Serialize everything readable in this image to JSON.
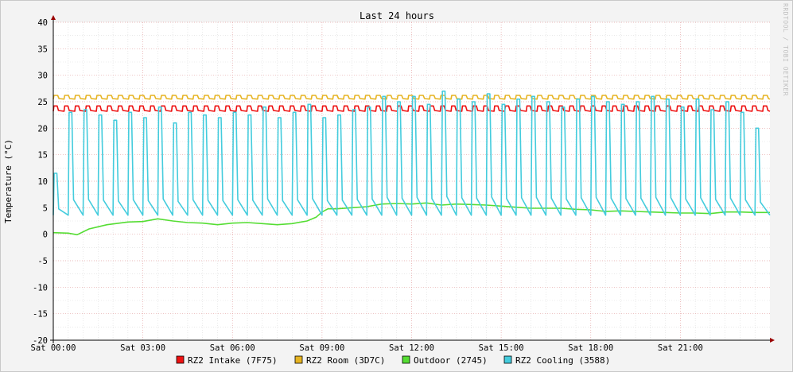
{
  "chart_data": {
    "type": "line",
    "title": "Last 24 hours",
    "ylabel": "Temperature (°C)",
    "watermark": "RRDTOOL / TOBI OETIKER",
    "ylim": [
      -20,
      40
    ],
    "yticks": [
      40,
      35,
      30,
      25,
      20,
      15,
      10,
      5,
      0,
      -5,
      -10,
      -15,
      -20
    ],
    "xlim": [
      0,
      24
    ],
    "xticks": [
      {
        "hour": 0,
        "label": "Sat 00:00"
      },
      {
        "hour": 3,
        "label": "Sat 03:00"
      },
      {
        "hour": 6,
        "label": "Sat 06:00"
      },
      {
        "hour": 9,
        "label": "Sat 09:00"
      },
      {
        "hour": 12,
        "label": "Sat 12:00"
      },
      {
        "hour": 15,
        "label": "Sat 15:00"
      },
      {
        "hour": 18,
        "label": "Sat 18:00"
      },
      {
        "hour": 21,
        "label": "Sat 21:00"
      }
    ],
    "legend_placement": "bottom",
    "series": [
      {
        "name": "RZ2 Intake (7F75)",
        "color": "#ee1111",
        "cycle": {
          "period_hours": 0.36,
          "low": 23.2,
          "high": 24.2,
          "high_fraction": 0.3
        }
      },
      {
        "name": "RZ2 Room (3D7C)",
        "color": "#e6b422",
        "cycle": {
          "period_hours": 0.36,
          "low": 25.5,
          "high": 26.2,
          "high_fraction": 0.35
        }
      },
      {
        "name": "Outdoor (2745)",
        "color": "#55dd33",
        "points": [
          [
            0,
            0.3
          ],
          [
            0.5,
            0.2
          ],
          [
            0.8,
            -0.1
          ],
          [
            1.2,
            1.0
          ],
          [
            1.8,
            1.8
          ],
          [
            2.5,
            2.3
          ],
          [
            3.0,
            2.4
          ],
          [
            3.5,
            2.9
          ],
          [
            4.0,
            2.5
          ],
          [
            4.5,
            2.2
          ],
          [
            5.0,
            2.1
          ],
          [
            5.5,
            1.8
          ],
          [
            6.0,
            2.1
          ],
          [
            6.5,
            2.2
          ],
          [
            7.0,
            2.0
          ],
          [
            7.5,
            1.8
          ],
          [
            8.0,
            2.0
          ],
          [
            8.5,
            2.5
          ],
          [
            8.8,
            3.2
          ],
          [
            9.0,
            4.2
          ],
          [
            9.2,
            4.8
          ],
          [
            9.5,
            4.8
          ],
          [
            10.0,
            5.0
          ],
          [
            10.5,
            5.2
          ],
          [
            11.0,
            5.7
          ],
          [
            11.5,
            5.8
          ],
          [
            12.0,
            5.7
          ],
          [
            12.5,
            5.9
          ],
          [
            13.0,
            5.5
          ],
          [
            13.5,
            5.7
          ],
          [
            14.0,
            5.6
          ],
          [
            14.5,
            5.5
          ],
          [
            15.0,
            5.3
          ],
          [
            15.5,
            5.1
          ],
          [
            16.0,
            4.9
          ],
          [
            16.5,
            4.9
          ],
          [
            17.0,
            4.9
          ],
          [
            17.5,
            4.7
          ],
          [
            18.0,
            4.6
          ],
          [
            18.5,
            4.3
          ],
          [
            19.0,
            4.4
          ],
          [
            19.5,
            4.3
          ],
          [
            20.0,
            4.2
          ],
          [
            20.5,
            4.1
          ],
          [
            21.0,
            4.0
          ],
          [
            21.5,
            4.0
          ],
          [
            22.0,
            3.9
          ],
          [
            22.5,
            4.2
          ],
          [
            23.0,
            4.2
          ],
          [
            23.5,
            4.1
          ],
          [
            24.0,
            4.1
          ]
        ]
      },
      {
        "name": "RZ2 Cooling (3588)",
        "color": "#44ccdd",
        "cycle": {
          "period_hours": 0.5,
          "low": 3.6,
          "high": 23.5,
          "high_fraction": 0.18
        },
        "peaks": [
          11.5,
          23.0,
          23.5,
          22.5,
          21.5,
          23.0,
          22.0,
          24.0,
          21.0,
          23.0,
          22.5,
          22.0,
          23.0,
          22.5,
          24.0,
          22.0,
          23.0,
          24.5,
          22.0,
          22.5,
          23.5,
          24.0,
          26.0,
          25.0,
          26.0,
          24.5,
          27.0,
          25.5,
          25.0,
          26.5,
          24.5,
          25.5,
          26.0,
          25.0,
          24.0,
          25.5,
          26.0,
          25.0,
          24.5,
          25.0,
          26.0,
          25.5,
          24.0,
          25.5,
          23.5,
          25.0,
          23.0,
          20.0
        ]
      }
    ]
  }
}
